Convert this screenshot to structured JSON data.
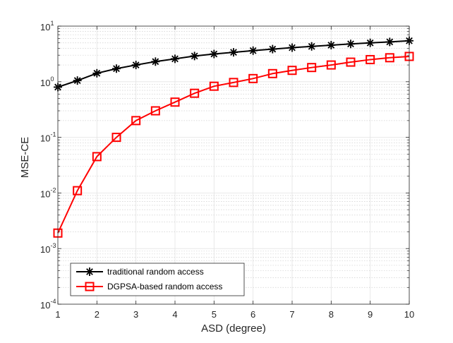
{
  "chart_data": {
    "type": "line",
    "title": "",
    "xlabel": "ASD (degree)",
    "ylabel": "MSE-CE",
    "xlim": [
      1,
      10
    ],
    "ylim": [
      0.0001,
      10
    ],
    "yscale": "log",
    "grid": true,
    "minor_grid": true,
    "legend_position": "bottom-left",
    "xticks": [
      1,
      2,
      3,
      4,
      5,
      6,
      7,
      8,
      9,
      10
    ],
    "yticks": [
      {
        "base": "10",
        "exp": "-4"
      },
      {
        "base": "10",
        "exp": "-3"
      },
      {
        "base": "10",
        "exp": "-2"
      },
      {
        "base": "10",
        "exp": "-1"
      },
      {
        "base": "10",
        "exp": "0"
      },
      {
        "base": "10",
        "exp": "1"
      }
    ],
    "x": [
      1,
      1.5,
      2,
      2.5,
      3,
      3.5,
      4,
      4.5,
      5,
      5.5,
      6,
      6.5,
      7,
      7.5,
      8,
      8.5,
      9,
      9.5,
      10
    ],
    "series": [
      {
        "name": "traditional random access",
        "color": "#000000",
        "marker": "asterisk",
        "values": [
          0.8,
          1.05,
          1.42,
          1.72,
          2.0,
          2.3,
          2.58,
          2.9,
          3.15,
          3.38,
          3.62,
          3.86,
          4.1,
          4.32,
          4.55,
          4.78,
          5.0,
          5.2,
          5.45
        ]
      },
      {
        "name": "DGPSA-based random access",
        "color": "#ff0000",
        "marker": "square",
        "values": [
          0.0019,
          0.011,
          0.045,
          0.1,
          0.2,
          0.3,
          0.43,
          0.62,
          0.83,
          0.97,
          1.14,
          1.4,
          1.6,
          1.8,
          2.0,
          2.25,
          2.5,
          2.7,
          2.85
        ]
      }
    ]
  }
}
